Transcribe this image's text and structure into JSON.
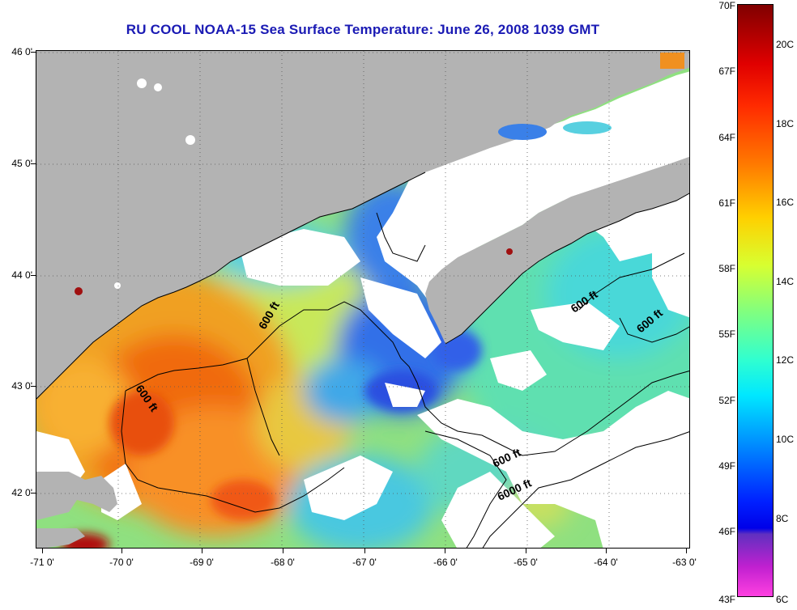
{
  "title": "RU COOL  NOAA-15  Sea Surface Temperature:  June 26, 2008 1039 GMT",
  "latitude_labels": [
    "46 0'",
    "45 0'",
    "44 0'",
    "43 0'",
    "42 0'"
  ],
  "longitude_labels": [
    "-71 0'",
    "-70 0'",
    "-69 0'",
    "-68 0'",
    "-67 0'",
    "-66 0'",
    "-65 0'",
    "-64 0'",
    "-63 0'"
  ],
  "colorbar": {
    "fahrenheit_labels": [
      "70F",
      "67F",
      "64F",
      "61F",
      "58F",
      "55F",
      "52F",
      "49F",
      "46F",
      "43F"
    ],
    "celsius_labels": [
      "20C",
      "18C",
      "16C",
      "14C",
      "12C",
      "10C",
      "8C",
      "6C"
    ]
  },
  "contour_labels": [
    "600 ft",
    "600 ft",
    "600 ft",
    "600 ft",
    "600 ft",
    "6000 ft"
  ],
  "colors": {
    "land": "#b3b3b3",
    "cloud": "#ffffff",
    "title": "#1a1ab4"
  }
}
